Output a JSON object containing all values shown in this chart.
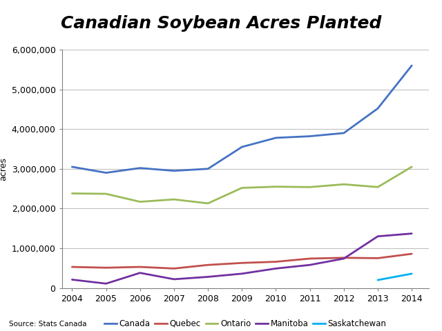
{
  "title": "Canadian Soybean Acres Planted",
  "years": [
    2004,
    2005,
    2006,
    2007,
    2008,
    2009,
    2010,
    2011,
    2012,
    2013,
    2014
  ],
  "series": {
    "Canada": {
      "values": [
        3050000,
        2900000,
        3020000,
        2950000,
        3000000,
        3550000,
        3780000,
        3820000,
        3900000,
        4520000,
        5600000
      ],
      "color": "#4472C4",
      "linewidth": 2.0
    },
    "Quebec": {
      "values": [
        530000,
        510000,
        530000,
        490000,
        580000,
        630000,
        660000,
        740000,
        760000,
        750000,
        860000
      ],
      "color": "#C0504D",
      "linewidth": 2.0
    },
    "Ontario": {
      "values": [
        2380000,
        2370000,
        2170000,
        2230000,
        2130000,
        2520000,
        2550000,
        2540000,
        2610000,
        2540000,
        3050000
      ],
      "color": "#9BBB59",
      "linewidth": 2.0
    },
    "Manitoba": {
      "values": [
        210000,
        110000,
        380000,
        220000,
        280000,
        360000,
        490000,
        580000,
        740000,
        1300000,
        1370000
      ],
      "color": "#7030A0",
      "linewidth": 2.0
    },
    "Saskatchewan": {
      "values": [
        null,
        null,
        null,
        null,
        null,
        null,
        null,
        null,
        null,
        200000,
        360000
      ],
      "color": "#00B0F0",
      "linewidth": 2.0
    }
  },
  "ylabel": "acres",
  "ylim": [
    0,
    6000000
  ],
  "yticks": [
    0,
    1000000,
    2000000,
    3000000,
    4000000,
    5000000,
    6000000
  ],
  "xlim_left": 2003.7,
  "xlim_right": 2014.5,
  "source_text": "Source: Stats Canada",
  "legend_order": [
    "Canada",
    "Quebec",
    "Ontario",
    "Manitoba",
    "Saskatchewan"
  ],
  "background_color": "#FFFFFF",
  "title_fontsize": 18,
  "grid_color": "#C0C0C0",
  "axis_color": "#808080",
  "tick_label_fontsize": 9
}
